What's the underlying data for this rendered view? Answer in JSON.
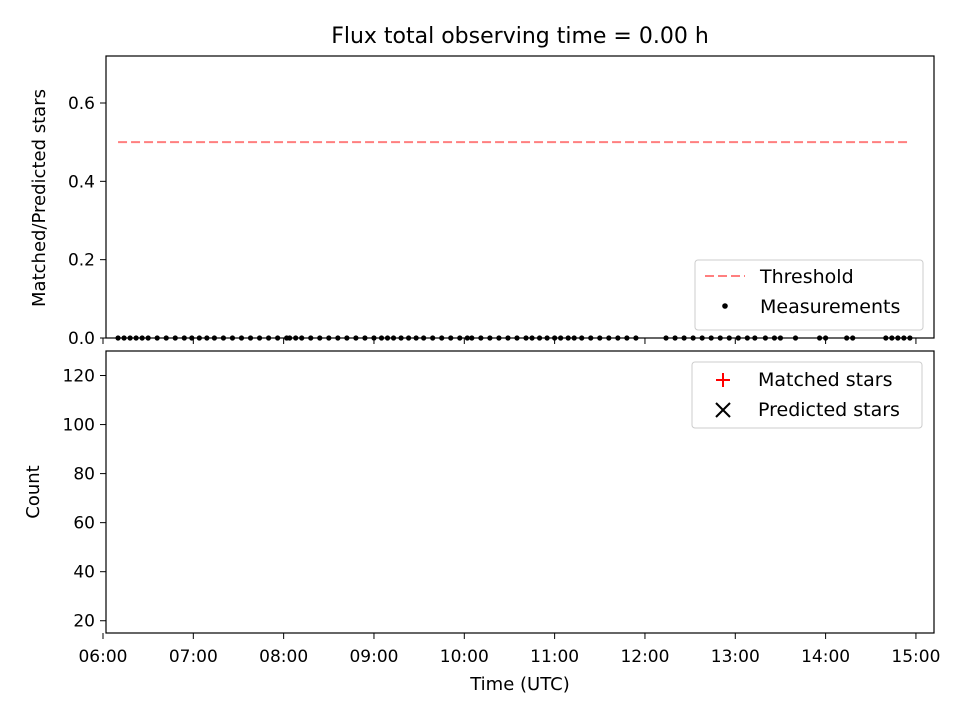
{
  "chart_data": [
    {
      "type": "scatter",
      "title": "Flux total observing time = 0.00 h",
      "xlabel": "",
      "ylabel": "Matched/Predicted stars",
      "xlim": [
        "06:02",
        "15:12"
      ],
      "ylim": [
        0,
        0.72
      ],
      "yticks": [
        0.0,
        0.2,
        0.4,
        0.6
      ],
      "ytick_labels": [
        "0.0",
        "0.2",
        "0.4",
        "0.6"
      ],
      "grid": false,
      "legend_position": "lower-right",
      "threshold": {
        "name": "Threshold",
        "value": 0.5,
        "x_range": [
          "06:10",
          "14:55"
        ],
        "color": "#ff7f7f",
        "style": "dashed"
      },
      "series": [
        {
          "name": "Measurements",
          "color": "#000000",
          "marker": "dot",
          "x": [
            "06:10",
            "06:14",
            "06:18",
            "06:22",
            "06:26",
            "06:30",
            "06:36",
            "06:42",
            "06:48",
            "06:54",
            "06:59",
            "07:04",
            "07:09",
            "07:14",
            "07:20",
            "07:26",
            "07:32",
            "07:38",
            "07:44",
            "07:50",
            "07:56",
            "08:02",
            "08:04",
            "08:08",
            "08:12",
            "08:18",
            "08:24",
            "08:30",
            "08:36",
            "08:42",
            "08:48",
            "08:54",
            "09:00",
            "09:05",
            "09:09",
            "09:13",
            "09:18",
            "09:23",
            "09:28",
            "09:33",
            "09:39",
            "09:45",
            "09:51",
            "09:57",
            "10:02",
            "10:05",
            "10:11",
            "10:17",
            "10:23",
            "10:29",
            "10:35",
            "10:41",
            "10:45",
            "10:50",
            "10:55",
            "11:00",
            "11:04",
            "11:09",
            "11:13",
            "11:18",
            "11:24",
            "11:30",
            "11:36",
            "11:42",
            "11:48",
            "11:54",
            "12:14",
            "12:20",
            "12:26",
            "12:32",
            "12:38",
            "12:44",
            "12:50",
            "12:56",
            "13:02",
            "13:08",
            "13:13",
            "13:20",
            "13:26",
            "13:30",
            "13:40",
            "13:56",
            "14:00",
            "14:14",
            "14:18",
            "14:40",
            "14:44",
            "14:48",
            "14:52",
            "14:56"
          ],
          "y": [
            0,
            0,
            0,
            0,
            0,
            0,
            0,
            0,
            0,
            0,
            0,
            0,
            0,
            0,
            0,
            0,
            0,
            0,
            0,
            0,
            0,
            0,
            0,
            0,
            0,
            0,
            0,
            0,
            0,
            0,
            0,
            0,
            0,
            0,
            0,
            0,
            0,
            0,
            0,
            0,
            0,
            0,
            0,
            0,
            0,
            0,
            0,
            0,
            0,
            0,
            0,
            0,
            0,
            0,
            0,
            0,
            0,
            0,
            0,
            0,
            0,
            0,
            0,
            0,
            0,
            0,
            0,
            0,
            0,
            0,
            0,
            0,
            0,
            0,
            0,
            0,
            0,
            0,
            0,
            0,
            0,
            0,
            0,
            0,
            0,
            0,
            0,
            0,
            0,
            0
          ]
        }
      ]
    },
    {
      "type": "scatter",
      "title": "",
      "xlabel": "Time (UTC)",
      "ylabel": "Count",
      "xlim": [
        "06:02",
        "15:12"
      ],
      "ylim": [
        15,
        130
      ],
      "yticks": [
        20,
        40,
        60,
        80,
        100,
        120
      ],
      "xtick_labels": [
        "06:00",
        "07:00",
        "08:00",
        "09:00",
        "10:00",
        "11:00",
        "12:00",
        "13:00",
        "14:00",
        "15:00"
      ],
      "grid": false,
      "legend_position": "upper-right",
      "series": [
        {
          "name": "Matched stars",
          "color": "#ff0000",
          "marker": "plus",
          "x": [],
          "y": []
        },
        {
          "name": "Predicted stars",
          "color": "#000000",
          "marker": "x",
          "x": [],
          "y": []
        }
      ]
    }
  ]
}
